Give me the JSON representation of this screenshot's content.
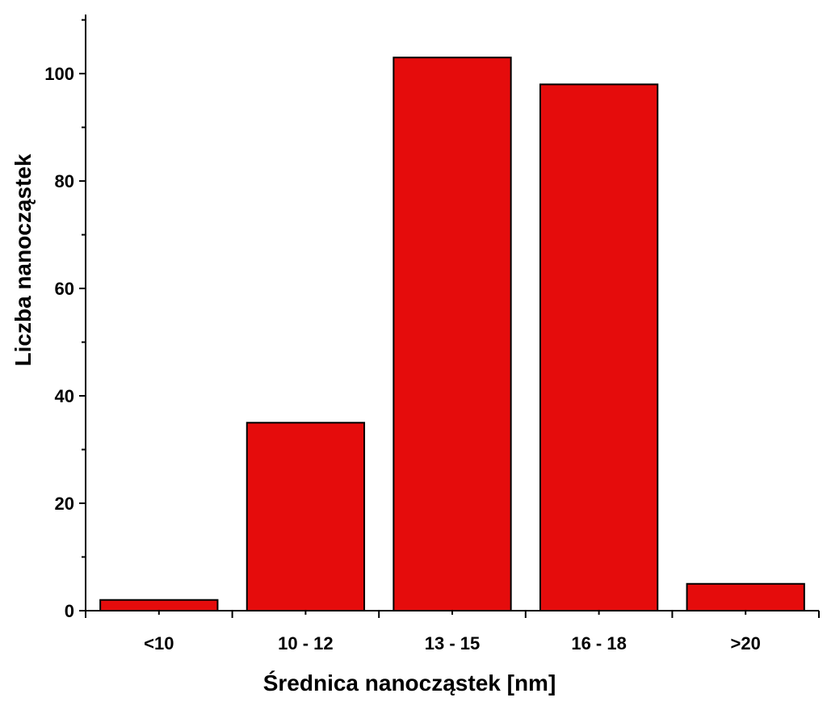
{
  "chart_data": {
    "type": "bar",
    "title": "",
    "xlabel": "Średnica nanocząstek [nm]",
    "ylabel": "Liczba nanocząstek",
    "categories": [
      "<10",
      "10 - 12",
      "13 - 15",
      "16 - 18",
      ">20"
    ],
    "values": [
      2,
      35,
      103,
      98,
      5
    ],
    "ylim": [
      0,
      111
    ],
    "yticks": [
      0,
      20,
      40,
      60,
      80,
      100
    ],
    "grid": false,
    "legend": "none",
    "bar_color": "#e50c0c",
    "bar_edge_color": "#000000"
  }
}
